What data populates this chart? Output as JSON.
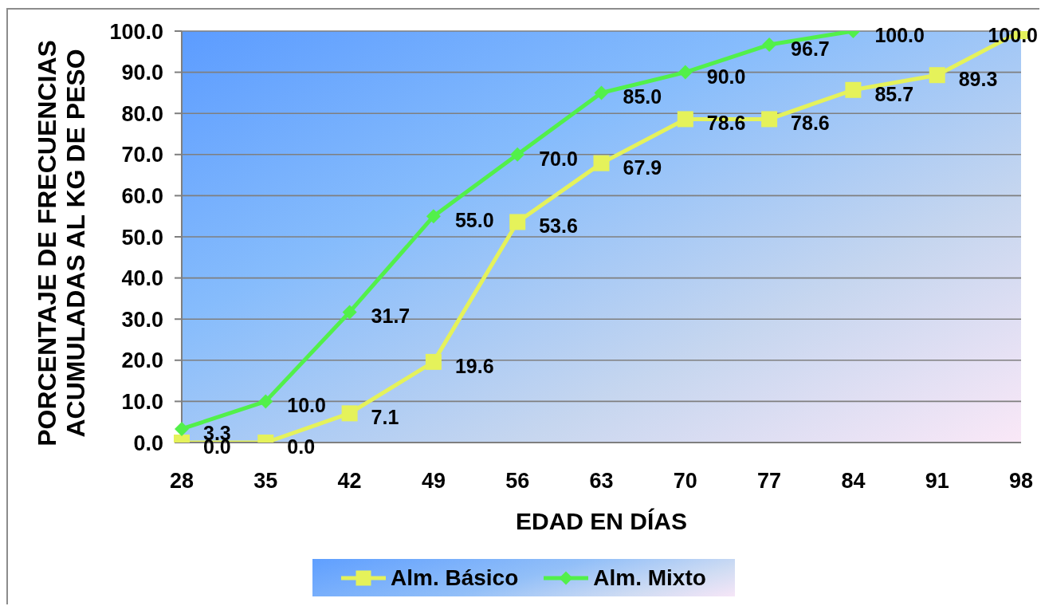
{
  "chart_data": {
    "type": "line",
    "categories": [
      "28",
      "35",
      "42",
      "49",
      "56",
      "63",
      "70",
      "77",
      "84",
      "91",
      "98"
    ],
    "xlabel": "EDAD EN DÍAS",
    "ylabel": "PORCENTAJE DE FRECUENCIAS\nACUMULADAS AL KG DE PESO",
    "ylim": [
      0,
      100
    ],
    "yticks": [
      {
        "value": 0,
        "label": "0.0"
      },
      {
        "value": 10,
        "label": "10.0"
      },
      {
        "value": 20,
        "label": "20.0"
      },
      {
        "value": 30,
        "label": "30.0"
      },
      {
        "value": 40,
        "label": "40.0"
      },
      {
        "value": 50,
        "label": "50.0"
      },
      {
        "value": 60,
        "label": "60.0"
      },
      {
        "value": 70,
        "label": "70.0"
      },
      {
        "value": 80,
        "label": "80.0"
      },
      {
        "value": 90,
        "label": "90.0"
      },
      {
        "value": 100,
        "label": "100.0"
      }
    ],
    "grid": "y",
    "legend": "bottom",
    "line_style": "solid",
    "series": [
      {
        "name": "Alm. Básico",
        "color": "#e5f25a",
        "marker": "square",
        "values": [
          0.0,
          0.0,
          7.1,
          19.6,
          53.6,
          67.9,
          78.6,
          78.6,
          85.7,
          89.3,
          100.0
        ],
        "value_labels": [
          "0.0",
          "0.0",
          "7.1",
          "19.6",
          "53.6",
          "67.9",
          "78.6",
          "78.6",
          "85.7",
          "89.3",
          "100.0"
        ]
      },
      {
        "name": "Alm. Mixto",
        "color": "#52f04a",
        "marker": "diamond",
        "values": [
          3.3,
          10.0,
          31.7,
          55.0,
          70.0,
          85.0,
          90.0,
          96.7,
          100.0,
          null,
          null
        ],
        "value_labels": [
          "3.3",
          "10.0",
          "31.7",
          "55.0",
          "70.0",
          "85.0",
          "90.0",
          "96.7",
          "100.0",
          null,
          null
        ]
      }
    ]
  }
}
